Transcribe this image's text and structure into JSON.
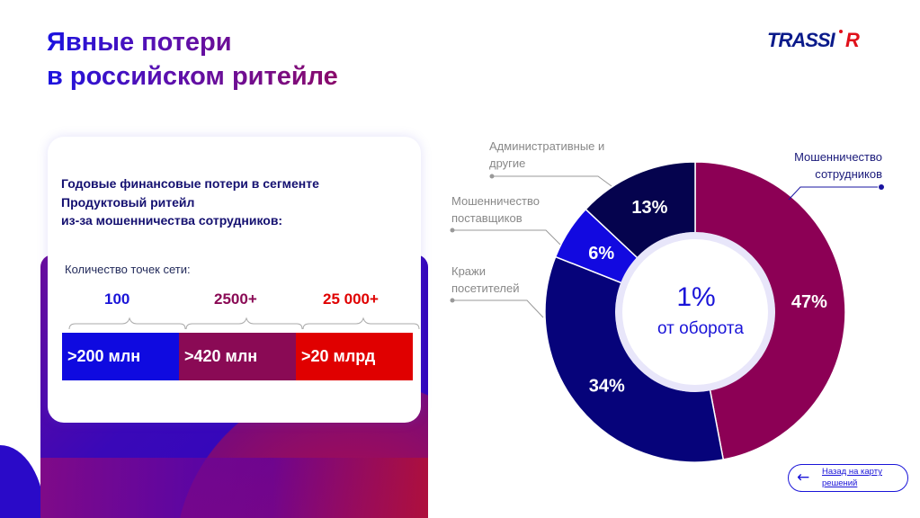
{
  "header": {
    "title_line1": "Явные потери",
    "title_line2": "в российском ритейле",
    "logo_text": "TRASSIR"
  },
  "card": {
    "title_lines": [
      "Годовые финансовые потери в сегменте",
      "Продуктовый ритейл",
      "из-за мошенничества сотрудников:"
    ],
    "count_label": "Количество точек сети:",
    "tiers": [
      {
        "count": "100",
        "loss": ">200 млн",
        "color": "#0f0ae0",
        "count_color": "#1a14d8"
      },
      {
        "count": "2500+",
        "loss": ">420 млн",
        "color": "#8a0a55",
        "count_color": "#8a0a55"
      },
      {
        "count": "25 000+",
        "loss": ">20 млрд",
        "color": "#e00000",
        "count_color": "#e00000"
      }
    ]
  },
  "chart_data": {
    "type": "pie",
    "donut": true,
    "center_value": "1%",
    "center_label": "от оборота",
    "categories": [
      "Мошенничество сотрудников",
      "Кражи посетителей",
      "Мошенничество поставщиков",
      "Административные и другие"
    ],
    "values": [
      47,
      34,
      6,
      13
    ],
    "data_labels": [
      "47%",
      "34%",
      "6%",
      "13%"
    ],
    "colors": [
      "#8c0055",
      "#06037a",
      "#1209e0",
      "#05034e"
    ],
    "label_lines": [
      [
        "Мошенничество",
        "сотрудников"
      ],
      [
        "Кражи",
        "посетителей"
      ],
      [
        "Мошенничество",
        "поставщиков"
      ],
      [
        "Административные и",
        "другие"
      ]
    ]
  },
  "nav": {
    "back_label_line1": "Назад на карту",
    "back_label_line2": "решений",
    "back_icon": "arrow-left-icon"
  }
}
